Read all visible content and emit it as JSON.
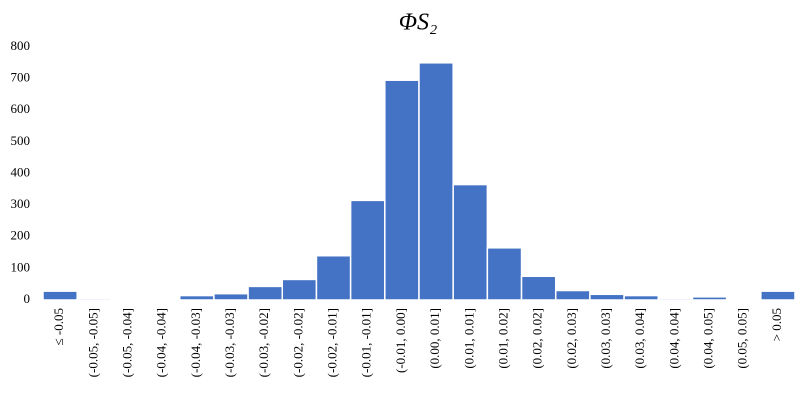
{
  "chart_data": {
    "type": "bar",
    "title": "ΦS₂",
    "categories": [
      "≤ -0.05",
      "(-0.05, -0.05]",
      "(-0.05, -0.04]",
      "(-0.04, -0.04]",
      "(-0.04, -0.03]",
      "(-0.03, -0.03]",
      "(-0.03, -0.02]",
      "(-0.02, -0.02]",
      "(-0.02, -0.01]",
      "(-0.01, -0.01]",
      "(-0.01, 0.00]",
      "(0.00, 0.01]",
      "(0.01, 0.01]",
      "(0.01, 0.02]",
      "(0.02, 0.02]",
      "(0.02, 0.03]",
      "(0.03, 0.03]",
      "(0.03, 0.04]",
      "(0.04, 0.04]",
      "(0.04, 0.05]",
      "(0.05, 0.05]",
      "> 0.05"
    ],
    "values": [
      28,
      5,
      2,
      2,
      14,
      20,
      43,
      65,
      140,
      315,
      695,
      750,
      365,
      165,
      75,
      30,
      18,
      14,
      5,
      10,
      2,
      28
    ],
    "color": "#4472c4",
    "ylim": [
      0,
      800
    ],
    "yticks": [
      0,
      100,
      200,
      300,
      400,
      500,
      600,
      700,
      800
    ],
    "grid": false
  }
}
